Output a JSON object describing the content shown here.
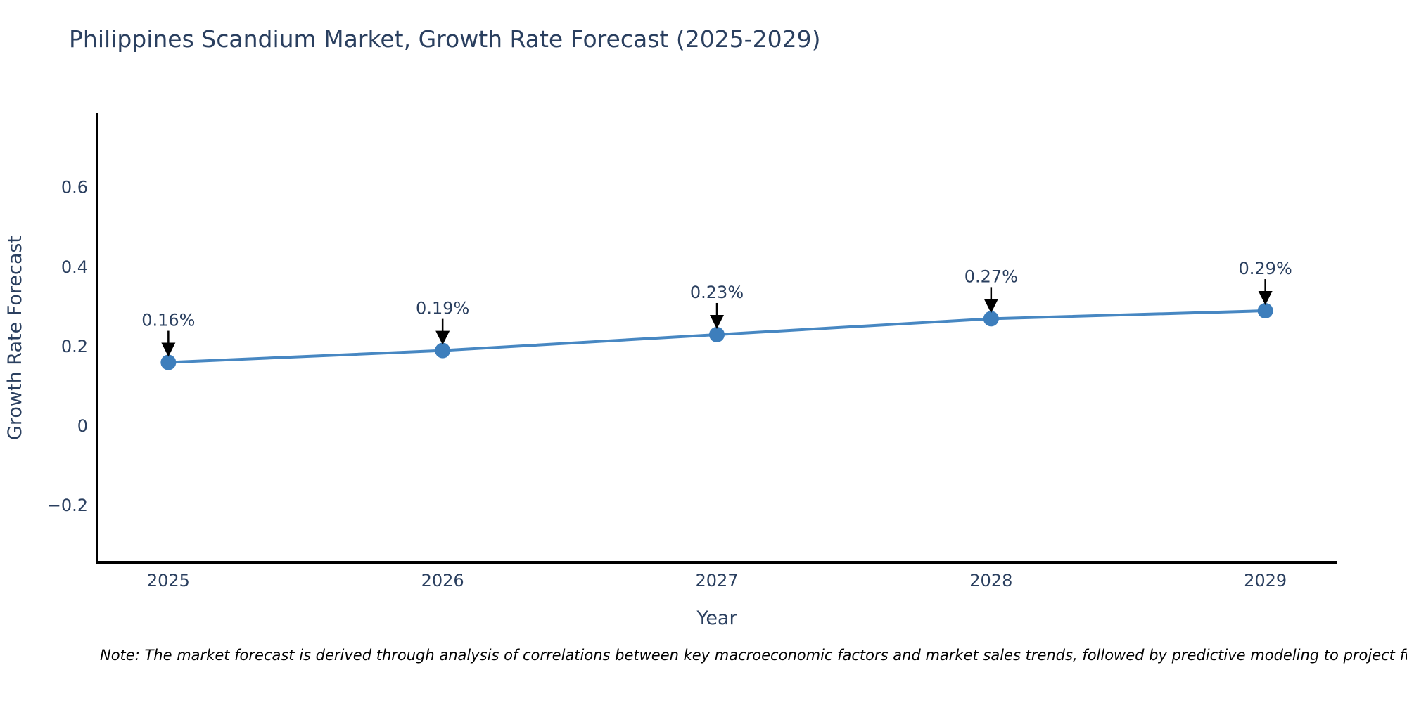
{
  "chart_data": {
    "type": "line",
    "title": "Philippines Scandium Market, Growth Rate Forecast (2025-2029)",
    "xlabel": "Year",
    "ylabel": "Growth Rate Forecast",
    "x": [
      2025,
      2026,
      2027,
      2028,
      2029
    ],
    "values": [
      0.16,
      0.19,
      0.23,
      0.27,
      0.29
    ],
    "point_labels": [
      "0.16%",
      "0.19%",
      "0.23%",
      "0.27%",
      "0.29%"
    ],
    "x_ticks": [
      {
        "value": 2025,
        "label": "2025"
      },
      {
        "value": 2026,
        "label": "2026"
      },
      {
        "value": 2027,
        "label": "2027"
      },
      {
        "value": 2028,
        "label": "2028"
      },
      {
        "value": 2029,
        "label": "2029"
      }
    ],
    "y_ticks": [
      {
        "value": 0.6,
        "label": "0.6"
      },
      {
        "value": 0.4,
        "label": "0.4"
      },
      {
        "value": 0.2,
        "label": "0.2"
      },
      {
        "value": 0,
        "label": "0"
      },
      {
        "value": -0.2,
        "label": "−0.2"
      }
    ],
    "xlim": [
      2024.74,
      2029.26
    ],
    "ylim": [
      -0.343,
      0.787
    ],
    "grid": false,
    "legend": "none",
    "annotation_style": "black down-arrow from label to point"
  },
  "footnote": {
    "text": "Note: The market forecast is derived through analysis of correlations between key macroeconomic factors and market sales trends, followed by predictive modeling to project future sales"
  },
  "colors": {
    "line": "#4787c2",
    "marker": "#3d7ebc",
    "axis": "#000000",
    "arrow": "#000000",
    "text": "#2a3f5f",
    "note_text": "#000000",
    "background": "#ffffff"
  }
}
